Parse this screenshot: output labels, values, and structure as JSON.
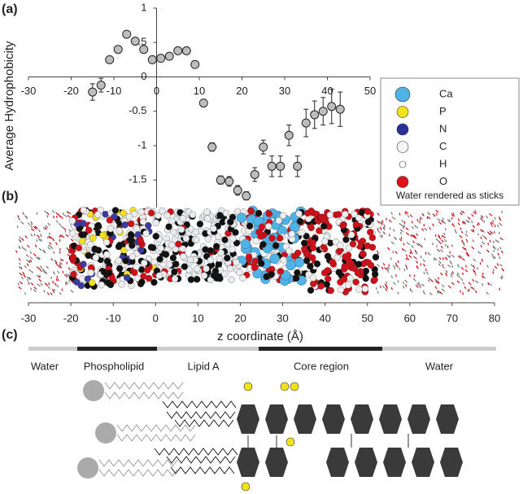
{
  "panel_labels": [
    "(a)",
    "(b)",
    "(c)"
  ],
  "chart_data": [
    {
      "type": "scatter",
      "ylabel": "Average Hydrophobicity",
      "color": "#bdbdbd",
      "x": [
        -15,
        -13,
        -11,
        -9,
        -7,
        -5,
        -3,
        -1,
        1,
        3,
        5,
        7,
        9,
        11,
        13,
        15,
        17,
        19,
        21,
        23,
        25,
        27,
        29,
        31,
        33,
        35,
        37,
        39,
        41,
        43
      ],
      "values": [
        -0.22,
        -0.12,
        0.25,
        0.4,
        0.62,
        0.52,
        0.4,
        0.25,
        0.27,
        0.3,
        0.38,
        0.38,
        0.18,
        -0.38,
        -1.02,
        -1.5,
        -1.52,
        -1.65,
        -1.73,
        -1.42,
        -1.02,
        -1.3,
        -1.3,
        -0.85,
        -1.3,
        -0.67,
        -0.55,
        -0.5,
        -0.43,
        -0.47
      ],
      "errors": [
        0.12,
        0.1,
        0.05,
        0.03,
        0.03,
        0.03,
        0.03,
        0.03,
        0.03,
        0.03,
        0.03,
        0.03,
        0.05,
        0.05,
        0.06,
        0.06,
        0.07,
        0.07,
        0.06,
        0.1,
        0.1,
        0.15,
        0.15,
        0.15,
        0.15,
        0.2,
        0.2,
        0.2,
        0.25,
        0.25
      ],
      "xlim": [
        -30,
        50
      ],
      "xticks": [
        -30,
        -20,
        -10,
        0,
        10,
        20,
        30,
        40,
        50
      ],
      "ylim": [
        -1.9,
        1
      ],
      "yticks": [
        -1.5,
        -1,
        -0.5,
        0,
        0.5,
        1
      ]
    },
    {
      "type": "image",
      "xlabel": "z coordinate (Å)",
      "xlim": [
        -30,
        80
      ],
      "xticks": [
        -30,
        -20,
        -10,
        0,
        10,
        20,
        30,
        40,
        50,
        60,
        70,
        80
      ],
      "legend": {
        "items": [
          {
            "name": "Ca",
            "color": "#4fb3e8"
          },
          {
            "name": "P",
            "color": "#f2e21c"
          },
          {
            "name": "N",
            "color": "#2b2f9a"
          },
          {
            "name": "C",
            "color": "#f4f4f4"
          },
          {
            "name": "H",
            "color": "#ffffff"
          },
          {
            "name": "O",
            "color": "#e0101a"
          }
        ],
        "note": "Water rendered as sticks"
      }
    }
  ],
  "diagram": {
    "regions": [
      {
        "label": "Water"
      },
      {
        "label": "Phospholipid"
      },
      {
        "label": "Lipid A"
      },
      {
        "label": "Core region"
      },
      {
        "label": "Water"
      }
    ]
  }
}
